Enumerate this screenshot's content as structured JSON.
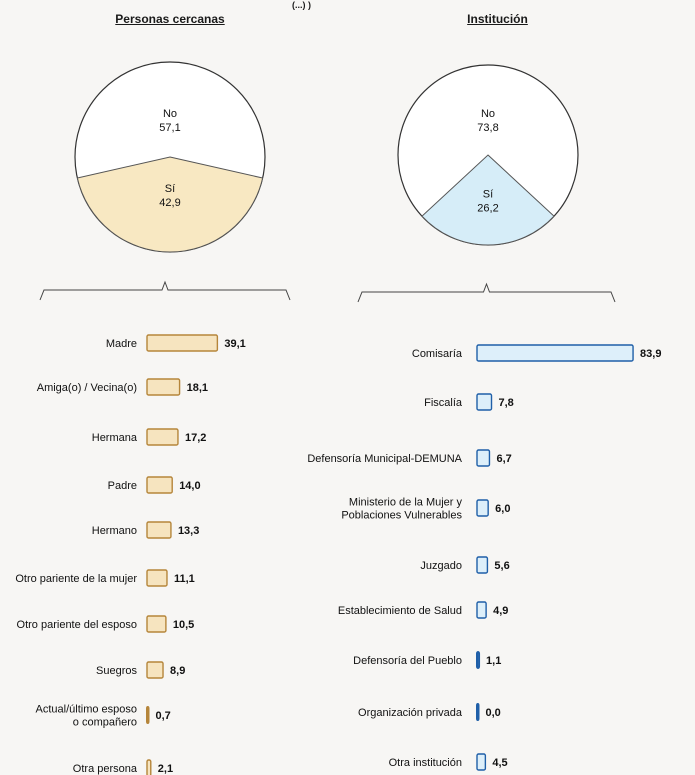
{
  "top_fragment": "(...) )",
  "chart_data": [
    {
      "type": "pie",
      "title": "Personas cercanas",
      "slices": [
        {
          "label": "No",
          "value": 57.1,
          "value_text": "57,1",
          "color": "#ffffff"
        },
        {
          "label": "Sí",
          "value": 42.9,
          "value_text": "42,9",
          "color": "#f8e8c2"
        }
      ]
    },
    {
      "type": "bar",
      "orientation": "horizontal",
      "categories": [
        "Madre",
        "Amiga(o) / Vecina(o)",
        "Hermana",
        "Padre",
        "Hermano",
        "Otro pariente de la mujer",
        "Otro pariente del esposo",
        "Suegros",
        "Actual/último esposo o compañero",
        "Otra persona"
      ],
      "values": [
        39.1,
        18.1,
        17.2,
        14.0,
        13.3,
        11.1,
        10.5,
        8.9,
        0.7,
        2.1
      ],
      "value_labels": [
        "39,1",
        "18,1",
        "17,2",
        "14,0",
        "13,3",
        "11,1",
        "10,5",
        "8,9",
        "0,7",
        "2,1"
      ],
      "bar_fill": "#f6e4bf",
      "bar_stroke": "#b5853a"
    },
    {
      "type": "pie",
      "title": "Institución",
      "slices": [
        {
          "label": "No",
          "value": 73.8,
          "value_text": "73,8",
          "color": "#ffffff"
        },
        {
          "label": "Sí",
          "value": 26.2,
          "value_text": "26,2",
          "color": "#d6edf8"
        }
      ]
    },
    {
      "type": "bar",
      "orientation": "horizontal",
      "categories": [
        "Comisaría",
        "Fiscalía",
        "Defensoría Municipal-DEMUNA",
        "Ministerio de la Mujer y Poblaciones Vulnerables",
        "Juzgado",
        "Establecimiento de Salud",
        "Defensoría del Pueblo",
        "Organización privada",
        "Otra institución"
      ],
      "values": [
        83.9,
        7.8,
        6.7,
        6.0,
        5.6,
        4.9,
        1.1,
        0.0,
        4.5
      ],
      "value_labels": [
        "83,9",
        "7,8",
        "6,7",
        "6,0",
        "5,6",
        "4,9",
        "1,1",
        "0,0",
        "4,5"
      ],
      "bar_fill": "#ddeffa",
      "bar_stroke": "#1f5fa8"
    }
  ]
}
